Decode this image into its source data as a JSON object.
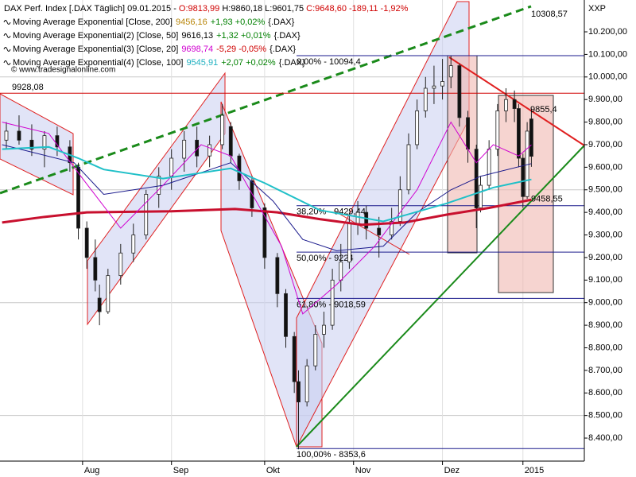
{
  "chart_data": {
    "type": "candlestick",
    "header": [
      {
        "text": "DAX Perf. Index [.DAX  Täglich] 09.01.2015 - ",
        "color": "#000000"
      },
      {
        "text": "O:9813,99",
        "color": "#d00000"
      },
      {
        "text": " H:9860,18 L:9601,75 ",
        "color": "#000000"
      },
      {
        "text": "C:9648,60 -189,11 -1,92%",
        "color": "#d00000"
      }
    ],
    "source": "© www.tradesignalonline.com",
    "y_axis_label": "XXP",
    "x": [
      1,
      4,
      7,
      10,
      13,
      16,
      18,
      20,
      22,
      23,
      25,
      28,
      31,
      34,
      37,
      40,
      43,
      46,
      49,
      52,
      54,
      56,
      59,
      62,
      65,
      67,
      69,
      70,
      72,
      74,
      76,
      78,
      80,
      82,
      84,
      86,
      89,
      92,
      94,
      96,
      98,
      100,
      102,
      104,
      106,
      108,
      110,
      112,
      113,
      115,
      117,
      119,
      121,
      122,
      123,
      124,
      125
    ],
    "open": [
      9720,
      9760,
      9720,
      9680,
      9740,
      9690,
      9600,
      9330,
      9200,
      9020,
      8960,
      9120,
      9220,
      9300,
      9480,
      9560,
      9640,
      9720,
      9650,
      9700,
      9780,
      9650,
      9540,
      9420,
      9200,
      9040,
      8850,
      8650,
      8560,
      8720,
      8860,
      8900,
      9100,
      9180,
      9350,
      9400,
      9330,
      9300,
      9360,
      9500,
      9700,
      9850,
      9950,
      9960,
      10000,
      10050,
      9820,
      9680,
      9420,
      9520,
      9680,
      9850,
      9900,
      9860,
      9640,
      9470,
      9813.99
    ],
    "high": [
      9800,
      9830,
      9790,
      9760,
      9780,
      9720,
      9620,
      9360,
      9280,
      9080,
      9150,
      9260,
      9350,
      9500,
      9600,
      9680,
      9760,
      9780,
      9740,
      9880,
      9800,
      9660,
      9560,
      9440,
      9220,
      9060,
      8870,
      8700,
      8750,
      8900,
      8960,
      9150,
      9260,
      9400,
      9450,
      9430,
      9380,
      9420,
      9560,
      9750,
      9900,
      10000,
      10050,
      10080,
      10094,
      10060,
      9850,
      9700,
      9560,
      9720,
      9880,
      9950,
      9940,
      9880,
      9660,
      9800,
      9860.18
    ],
    "low": [
      9680,
      9700,
      9650,
      9600,
      9650,
      9580,
      9280,
      9150,
      9050,
      8900,
      8950,
      9080,
      9180,
      9280,
      9420,
      9500,
      9580,
      9600,
      9600,
      9680,
      9620,
      9500,
      9380,
      9150,
      8980,
      8800,
      8600,
      8350,
      8540,
      8700,
      8800,
      8880,
      9050,
      9150,
      9300,
      9280,
      9200,
      9280,
      9340,
      9480,
      9680,
      9820,
      9880,
      9900,
      9950,
      9780,
      9620,
      9330,
      9400,
      9500,
      9650,
      9800,
      9800,
      9600,
      9420,
      9460,
      9601.75
    ],
    "close": [
      9760,
      9720,
      9680,
      9740,
      9690,
      9620,
      9330,
      9200,
      9100,
      8960,
      9120,
      9220,
      9300,
      9480,
      9560,
      9640,
      9720,
      9650,
      9700,
      9830,
      9650,
      9540,
      9420,
      9200,
      9040,
      8850,
      8650,
      8560,
      8720,
      8860,
      8900,
      9100,
      9180,
      9350,
      9400,
      9330,
      9300,
      9360,
      9500,
      9700,
      9850,
      9950,
      9960,
      9980,
      10050,
      9820,
      9680,
      9420,
      9520,
      9680,
      9850,
      9900,
      9860,
      9640,
      9470,
      9760,
      9648.6
    ],
    "series": [
      {
        "name": "Moving Average Exponential [Close, 200]",
        "color": "#c8102e",
        "width": 3,
        "value_text": "9456,16",
        "value_color": "#b8860b",
        "change_text": "+1,93 +0,02%",
        "change_color": "#008000",
        "suffix": "{.DAX}",
        "x": [
          0,
          10,
          20,
          40,
          55,
          65,
          75,
          85,
          95,
          105,
          115,
          125
        ],
        "values": [
          9355,
          9380,
          9400,
          9405,
          9415,
          9400,
          9370,
          9345,
          9355,
          9390,
          9420,
          9456
        ]
      },
      {
        "name": "Moving Average Exponential(2) [Close, 50]",
        "color": "#1a1a8c",
        "width": 1,
        "value_text": "9616,13",
        "value_color": "#000000",
        "change_text": "+1,32 +0,01%",
        "change_color": "#008000",
        "suffix": "{.DAX}",
        "x": [
          0,
          17,
          24,
          38,
          54,
          64,
          71,
          79,
          90,
          98,
          106,
          113,
          125
        ],
        "values": [
          9700,
          9620,
          9480,
          9520,
          9620,
          9450,
          9280,
          9230,
          9250,
          9400,
          9500,
          9560,
          9616
        ]
      },
      {
        "name": "Moving Average Exponential(3) [Close, 20]",
        "color": "#d000d0",
        "width": 1,
        "value_text": "9698,74",
        "value_color": "#d000d0",
        "change_text": "-5,29 -0,05%",
        "change_color": "#d00000",
        "suffix": "{.DAX}",
        "x": [
          0,
          11,
          19,
          28,
          38,
          47,
          54,
          66,
          71,
          79,
          88,
          98,
          106,
          112,
          116,
          122,
          125
        ],
        "values": [
          9800,
          9750,
          9550,
          9330,
          9520,
          9700,
          9650,
          9250,
          8950,
          9080,
          9250,
          9500,
          9800,
          9620,
          9700,
          9650,
          9699
        ]
      },
      {
        "name": "Moving Average Exponential(4) [Close, 100]",
        "color": "#20c0c8",
        "width": 2,
        "value_text": "9545,91",
        "value_color": "#20b0c0",
        "change_text": "+2,07 +0,02%",
        "change_color": "#008000",
        "suffix": "{.DAX}",
        "x": [
          0,
          11,
          18,
          24,
          38,
          54,
          62,
          75,
          90,
          105,
          116,
          125
        ],
        "values": [
          9680,
          9690,
          9640,
          9590,
          9550,
          9595,
          9530,
          9410,
          9360,
          9440,
          9510,
          9546
        ]
      }
    ],
    "levels": [
      {
        "value": 9928.08,
        "label": "9928,08",
        "color": "#d00000",
        "kind": "full"
      },
      {
        "value": 10094.4,
        "label": "0,00% - 10094,4",
        "color": "#1a1a8c",
        "kind": "fib"
      },
      {
        "value": 9429.44,
        "label": "38,20% - 9429,44",
        "color": "#1a1a8c",
        "kind": "fib"
      },
      {
        "value": 9224,
        "label": "50,00% - 9224",
        "color": "#1a1a8c",
        "kind": "fib"
      },
      {
        "value": 9018.59,
        "label": "61,80% - 9018,59",
        "color": "#1a1a8c",
        "kind": "fib"
      },
      {
        "value": 8353.6,
        "label": "100,00% - 8353,6",
        "color": "#1a1a8c",
        "kind": "fib"
      }
    ],
    "annotations": [
      {
        "value": 10308.57,
        "label": "10308,57",
        "color": "#008000"
      },
      {
        "value": 9855.4,
        "label": "9855,4",
        "color": "#d00000"
      },
      {
        "value": 9458.55,
        "label": "9458,55",
        "color": "#333333"
      }
    ],
    "xlim": [
      -0.5,
      137.5
    ],
    "ylim": [
      8298,
      10341
    ],
    "xticks": [
      {
        "value": 19,
        "label": "Aug"
      },
      {
        "value": 40,
        "label": "Sep"
      },
      {
        "value": 62,
        "label": "Okt"
      },
      {
        "value": 83,
        "label": "Nov"
      },
      {
        "value": 104,
        "label": "Dez"
      },
      {
        "value": 123,
        "label": "2015"
      }
    ],
    "yticks": [
      {
        "value": 8400,
        "label": "8.400,00"
      },
      {
        "value": 8500,
        "label": "8.500,00"
      },
      {
        "value": 8600,
        "label": "8.600,00"
      },
      {
        "value": 8700,
        "label": "8.700,00"
      },
      {
        "value": 8800,
        "label": "8.800,00"
      },
      {
        "value": 8900,
        "label": "8.900,00"
      },
      {
        "value": 9000,
        "label": "9.000,00"
      },
      {
        "value": 9100,
        "label": "9.100,00"
      },
      {
        "value": 9200,
        "label": "9.200,00"
      },
      {
        "value": 9300,
        "label": "9.300,00"
      },
      {
        "value": 9400,
        "label": "9.400,00"
      },
      {
        "value": 9500,
        "label": "9.500,00"
      },
      {
        "value": 9600,
        "label": "9.600,00"
      },
      {
        "value": 9700,
        "label": "9.700,00"
      },
      {
        "value": 9800,
        "label": "9.800,00"
      },
      {
        "value": 9900,
        "label": "9.900,00"
      },
      {
        "value": 10000,
        "label": "10.000,00"
      },
      {
        "value": 10100,
        "label": "10.100,00"
      },
      {
        "value": 10200,
        "label": "10.200,00"
      }
    ],
    "hgrid": [
      8500,
      9000,
      9500,
      10000
    ],
    "up_color": "#ffffff",
    "down_color": "#111111"
  }
}
